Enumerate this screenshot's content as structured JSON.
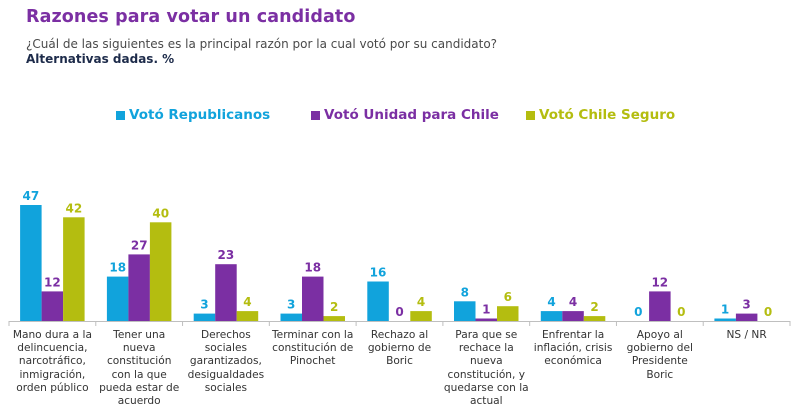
{
  "header": {
    "title": "Razones para votar un candidato",
    "subtitle": "¿Cuál de las siguientes es la principal razón por la cual votó por su candidato?",
    "note": "Alternativas dadas. %"
  },
  "colors": {
    "title": "#7b2fa3",
    "republicanos": "#11a3dc",
    "unidad": "#7b2fa3",
    "chile_seguro": "#b4bd10"
  },
  "chart_data": {
    "type": "bar",
    "title": "Razones para votar un candidato",
    "subtitle": "¿Cuál de las siguientes es la principal razón por la cual votó por su candidato?",
    "xlabel": "",
    "ylabel": "%",
    "ylim": [
      0,
      50
    ],
    "grid": false,
    "legend_position": "top-center",
    "categories": [
      "Mano dura a la delincuencia, narcotráfico, inmigración, orden público",
      "Tener una nueva constitución con la que pueda estar de acuerdo",
      "Derechos sociales garantizados, desigualdades sociales",
      "Terminar con la constitución de Pinochet",
      "Rechazo al gobierno de Boric",
      "Para que se rechace la nueva constitución, y quedarse con la actual",
      "Enfrentar la inflación, crisis económica",
      "Apoyo al gobierno del Presidente Boric",
      "NS / NR"
    ],
    "category_lines": [
      [
        "Mano dura a la",
        "delincuencia,",
        "narcotráfico,",
        "inmigración,",
        "orden público"
      ],
      [
        "Tener una",
        "nueva",
        "constitución",
        "con la que",
        "pueda estar de",
        "acuerdo"
      ],
      [
        "Derechos",
        "sociales",
        "garantizados,",
        "desigualdades",
        "sociales"
      ],
      [
        "Terminar con la",
        "constitución de",
        "Pinochet"
      ],
      [
        "Rechazo al",
        "gobierno de",
        "Boric"
      ],
      [
        "Para que se",
        "rechace la",
        "nueva",
        "constitución, y",
        "quedarse con la",
        "actual"
      ],
      [
        "Enfrentar la",
        "inflación, crisis",
        "económica"
      ],
      [
        "Apoyo al",
        "gobierno del",
        "Presidente",
        "Boric"
      ],
      [
        "NS / NR"
      ]
    ],
    "series": [
      {
        "name": "Votó Republicanos",
        "color": "#11a3dc",
        "values": [
          47,
          18,
          3,
          3,
          16,
          8,
          4,
          0,
          1
        ]
      },
      {
        "name": "Votó Unidad para Chile",
        "color": "#7b2fa3",
        "values": [
          12,
          27,
          23,
          18,
          0,
          1,
          4,
          12,
          3
        ]
      },
      {
        "name": "Votó Chile Seguro",
        "color": "#b4bd10",
        "values": [
          42,
          40,
          4,
          2,
          4,
          6,
          2,
          0,
          0
        ]
      }
    ]
  }
}
